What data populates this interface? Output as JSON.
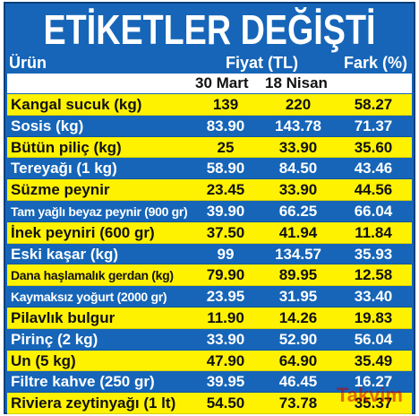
{
  "title": "ETİKETLER DEĞİŞTİ",
  "headers": {
    "product": "Ürün",
    "price": "Fiyat (TL)",
    "diff": "Fark (%)"
  },
  "dates": {
    "d1": "30 Mart",
    "d2": "18 Nisan"
  },
  "rows": [
    {
      "name": "Kangal sucuk (kg)",
      "p1": "139",
      "p2": "220",
      "diff": "58.27",
      "style": "yellow",
      "narrow": false
    },
    {
      "name": "Sosis (kg)",
      "p1": "83.90",
      "p2": "143.78",
      "diff": "71.37",
      "style": "blue",
      "narrow": false
    },
    {
      "name": "Bütün piliç (kg)",
      "p1": "25",
      "p2": "33.90",
      "diff": "35.60",
      "style": "yellow",
      "narrow": false
    },
    {
      "name": "Tereyağı (1 kg)",
      "p1": "58.90",
      "p2": "84.50",
      "diff": "43.46",
      "style": "blue",
      "narrow": false
    },
    {
      "name": "Süzme peynir",
      "p1": "23.45",
      "p2": "33.90",
      "diff": "44.56",
      "style": "yellow",
      "narrow": false
    },
    {
      "name": "Tam yağlı beyaz peynir (900 gr)",
      "p1": "39.90",
      "p2": "66.25",
      "diff": "66.04",
      "style": "blue",
      "narrow": true
    },
    {
      "name": "İnek peyniri (600 gr)",
      "p1": "37.50",
      "p2": "41.94",
      "diff": "11.84",
      "style": "yellow",
      "narrow": false
    },
    {
      "name": "Eski kaşar (kg)",
      "p1": "99",
      "p2": "134.57",
      "diff": "35.93",
      "style": "blue",
      "narrow": false
    },
    {
      "name": "Dana haşlamalık gerdan (kg)",
      "p1": "79.90",
      "p2": "89.95",
      "diff": "12.58",
      "style": "yellow",
      "narrow": true
    },
    {
      "name": "Kaymaksız yoğurt (2000 gr)",
      "p1": "23.95",
      "p2": "31.95",
      "diff": "33.40",
      "style": "blue",
      "narrow": true
    },
    {
      "name": "Pilavlık bulgur",
      "p1": "11.90",
      "p2": "14.26",
      "diff": "19.83",
      "style": "yellow",
      "narrow": false
    },
    {
      "name": "Pirinç (2 kg)",
      "p1": "33.90",
      "p2": "52.90",
      "diff": "56.04",
      "style": "blue",
      "narrow": false
    },
    {
      "name": "Un (5 kg)",
      "p1": "47.90",
      "p2": "64.90",
      "diff": "35.49",
      "style": "yellow",
      "narrow": false
    },
    {
      "name": "Filtre kahve (250 gr)",
      "p1": "39.95",
      "p2": "46.45",
      "diff": "16.27",
      "style": "blue",
      "narrow": false
    },
    {
      "name": "Riviera zeytinyağı (1 lt)",
      "p1": "54.50",
      "p2": "73.78",
      "diff": "35.37",
      "style": "yellow",
      "narrow": false
    }
  ],
  "watermark": "Takvim",
  "colors": {
    "blue": "#1665b8",
    "yellow": "#fff200"
  }
}
